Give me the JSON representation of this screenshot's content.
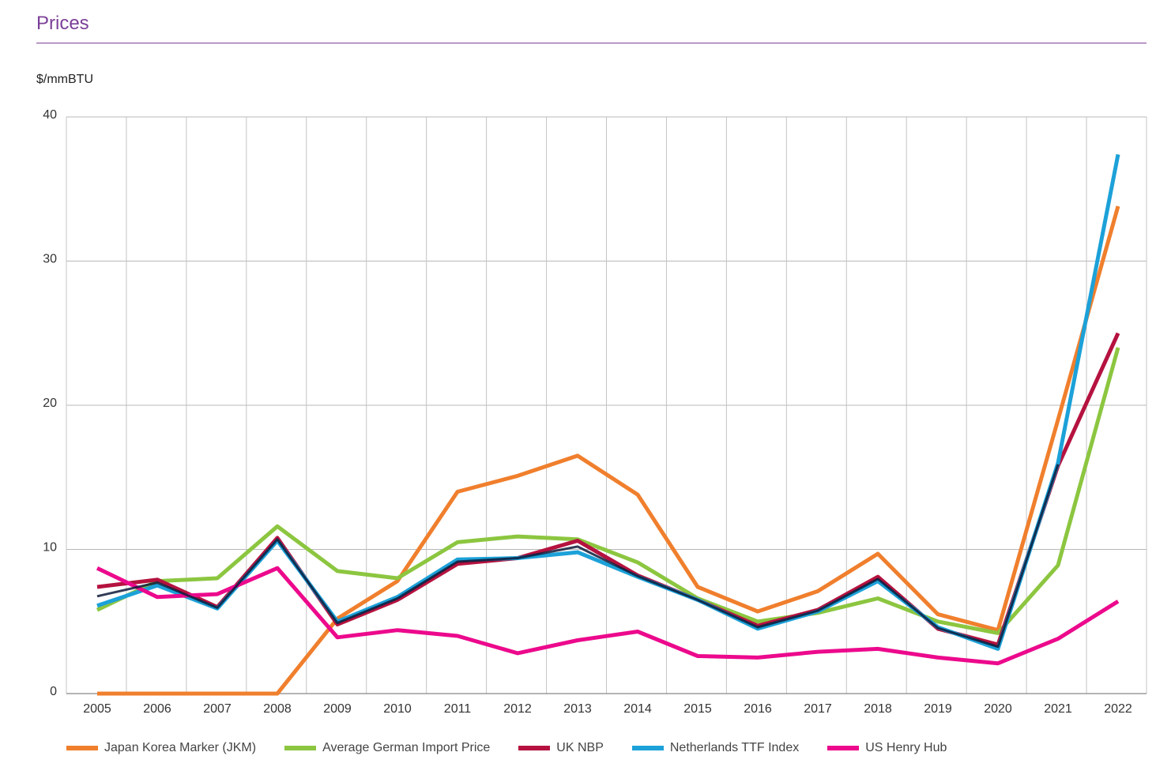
{
  "header": {
    "title": "Prices",
    "unit_label": "$/mmBTU"
  },
  "chart_data": {
    "type": "line",
    "title": "Prices",
    "ylabel": "$/mmBTU",
    "xlabel": "",
    "ylim": [
      0,
      40
    ],
    "yticks": [
      0,
      10,
      20,
      30,
      40
    ],
    "grid": true,
    "legend_position": "bottom",
    "categories": [
      "2005",
      "2006",
      "2007",
      "2008",
      "2009",
      "2010",
      "2011",
      "2012",
      "2013",
      "2014",
      "2015",
      "2016",
      "2017",
      "2018",
      "2019",
      "2020",
      "2021",
      "2022"
    ],
    "series": [
      {
        "name": "Japan Korea Marker (JKM)",
        "color": "#f07f2d",
        "values": [
          0,
          0,
          0,
          0,
          5.2,
          7.8,
          14.0,
          15.1,
          16.5,
          13.8,
          7.4,
          5.7,
          7.1,
          9.7,
          5.5,
          4.4,
          19.0,
          33.8
        ]
      },
      {
        "name": "Average German Import Price",
        "color": "#8cc640",
        "values": [
          5.8,
          7.8,
          8.0,
          11.6,
          8.5,
          8.0,
          10.5,
          10.9,
          10.7,
          9.1,
          6.6,
          5.0,
          5.6,
          6.6,
          5.0,
          4.2,
          8.9,
          24.0
        ]
      },
      {
        "name": "UK NBP",
        "color": "#b5123f",
        "values": [
          7.4,
          7.9,
          6.0,
          10.8,
          4.8,
          6.5,
          9.0,
          9.4,
          10.6,
          8.2,
          6.5,
          4.7,
          5.8,
          8.1,
          4.5,
          3.4,
          15.8,
          25.0
        ]
      },
      {
        "name": "Netherlands TTF Index",
        "color": "#1ca1d8",
        "values": [
          6.1,
          7.5,
          5.9,
          10.6,
          5.0,
          6.7,
          9.3,
          9.4,
          9.8,
          8.1,
          6.5,
          4.5,
          5.7,
          7.8,
          4.6,
          3.1,
          16.0,
          37.4
        ]
      },
      {
        "name": "US Henry Hub",
        "color": "#ec098c",
        "values": [
          8.7,
          6.7,
          6.9,
          8.7,
          3.9,
          4.4,
          4.0,
          2.8,
          3.7,
          4.3,
          2.6,
          2.5,
          2.9,
          3.1,
          2.5,
          2.1,
          3.8,
          6.4
        ]
      }
    ]
  }
}
